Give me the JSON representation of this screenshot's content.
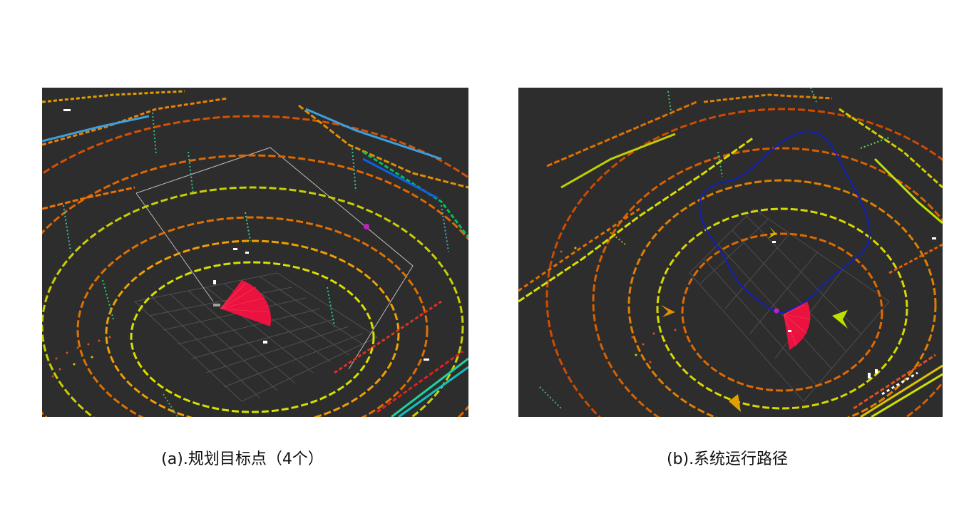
{
  "figure": {
    "panels": [
      {
        "id": "a",
        "caption": "(a).规划目标点（4个）",
        "content": "lidar point cloud visualization with planned goal point"
      },
      {
        "id": "b",
        "caption": "(b).系统运行路径",
        "content": "lidar point cloud visualization with system running path"
      }
    ]
  }
}
